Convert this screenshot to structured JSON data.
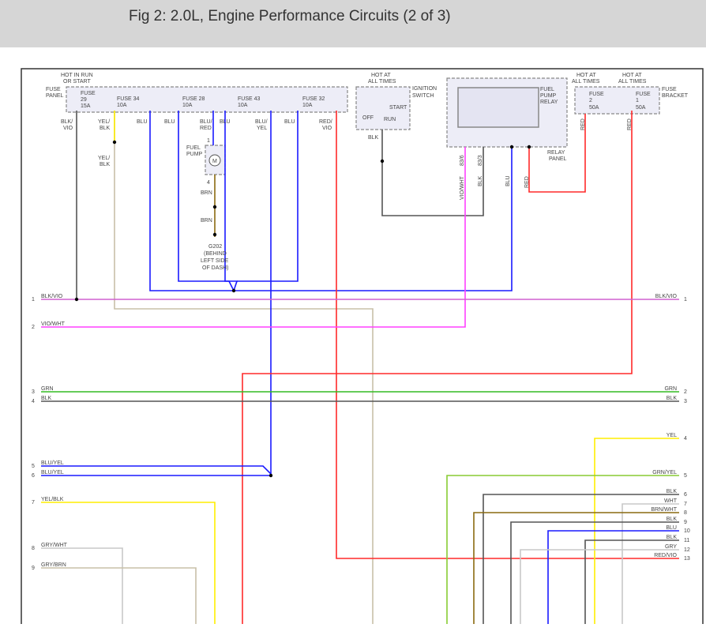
{
  "title": "Fig 2: 2.0L, Engine Performance Circuits (2 of 3)",
  "colors": {
    "blk": "#555555",
    "blu": "#1a1aff",
    "red": "#ff2a2a",
    "vio": "#ff40ff",
    "grn": "#33bb22",
    "yel": "#ffee00",
    "gry": "#c8c8c8",
    "tan": "#c8c0a8",
    "brn": "#8a6a10",
    "grnyel": "#88cc33",
    "blkvio": "#d060d0"
  },
  "fuse_panel": {
    "hot": [
      "HOT IN RUN",
      "OR START"
    ],
    "name": [
      "FUSE",
      "PANEL"
    ],
    "fuses": [
      {
        "name": "FUSE",
        "num": "29",
        "amp": "15A"
      },
      {
        "name": "FUSE 34",
        "amp": "10A"
      },
      {
        "name": "FUSE 28",
        "amp": "10A"
      },
      {
        "name": "FUSE 43",
        "amp": "10A"
      },
      {
        "name": "FUSE 32",
        "amp": "10A"
      }
    ],
    "wires": [
      "BLK/",
      "VIO",
      "YEL/",
      "BLK",
      "BLU",
      "BLU",
      "BLU/",
      "RED",
      "BLU",
      "BLU/",
      "YEL",
      "BLU",
      "RED/",
      "VIO"
    ]
  },
  "fuel_pump": {
    "name": [
      "FUEL",
      "PUMP"
    ],
    "motor": "M",
    "pin1": "1",
    "pin4": "4",
    "wire_top": [
      "YEL/",
      "BLK"
    ],
    "brn1": "BRN",
    "brn2": "BRN",
    "ground": [
      "G202",
      "(BEHIND",
      "LEFT SIDE",
      "OF DASH)"
    ]
  },
  "ignition": {
    "hot": [
      "HOT AT",
      "ALL TIMES"
    ],
    "name": [
      "IGNITION",
      "SWITCH"
    ],
    "off": "OFF",
    "run": "RUN",
    "start": "START",
    "wire": "BLK"
  },
  "relay": {
    "name": [
      "FUEL",
      "PUMP",
      "RELAY"
    ],
    "panel": [
      "RELAY",
      "PANEL"
    ],
    "pins": [
      "83/6",
      "83/3"
    ],
    "wires": [
      "VIO/WHT",
      "BLK",
      "BLU",
      "RED"
    ]
  },
  "fuse_bracket": {
    "hot": [
      "HOT AT",
      "ALL TIMES"
    ],
    "name": [
      "FUSE",
      "BRACKET"
    ],
    "fuses": [
      {
        "name": "FUSE",
        "num": "2",
        "amp": "50A"
      },
      {
        "name": "FUSE",
        "num": "1",
        "amp": "50A"
      }
    ],
    "wires": [
      "RED",
      "RED"
    ]
  },
  "left_connector": [
    {
      "pin": "1",
      "wire": "BLK/VIO"
    },
    {
      "pin": "2",
      "wire": "VIO/WHT"
    },
    {
      "pin": "3",
      "wire": "GRN"
    },
    {
      "pin": "4",
      "wire": "BLK"
    },
    {
      "pin": "5",
      "wire": "BLU/YEL"
    },
    {
      "pin": "6",
      "wire": "BLU/YEL"
    },
    {
      "pin": "7",
      "wire": "YEL/BLK"
    },
    {
      "pin": "8",
      "wire": "GRY/WHT"
    },
    {
      "pin": "9",
      "wire": "GRY/BRN"
    }
  ],
  "right_connector": [
    {
      "pin": "1",
      "wire": "BLK/VIO"
    },
    {
      "pin": "2",
      "wire": "GRN"
    },
    {
      "pin": "3",
      "wire": "BLK"
    },
    {
      "pin": "4",
      "wire": "YEL"
    },
    {
      "pin": "5",
      "wire": "GRN/YEL"
    },
    {
      "pin": "6",
      "wire": "BLK"
    },
    {
      "pin": "7",
      "wire": "WHT"
    },
    {
      "pin": "8",
      "wire": "BRN/WHT"
    },
    {
      "pin": "9",
      "wire": "BLK"
    },
    {
      "pin": "10",
      "wire": "BLU"
    },
    {
      "pin": "11",
      "wire": "BLK"
    },
    {
      "pin": "12",
      "wire": "GRY"
    },
    {
      "pin": "13",
      "wire": "RED/VIO"
    }
  ]
}
